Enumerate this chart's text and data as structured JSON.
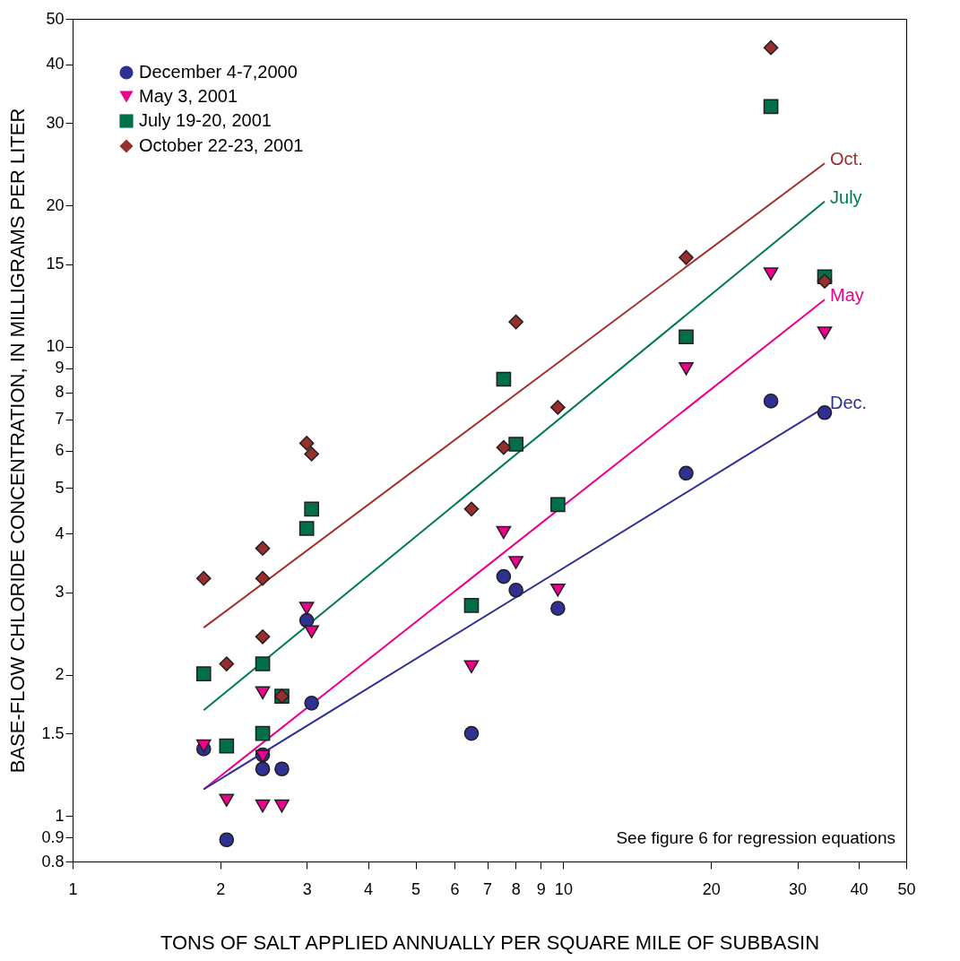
{
  "chart_data": {
    "type": "scatter",
    "xlabel": "TONS OF SALT APPLIED ANNUALLY PER SQUARE MILE OF SUBBASIN",
    "ylabel": "BASE-FLOW CHLORIDE CONCENTRATION, IN MILLIGRAMS PER LITER",
    "log": "xy",
    "grid": false,
    "legend": "top left",
    "xlim": [
      1,
      50
    ],
    "xticks": [
      1,
      2,
      3,
      4,
      5,
      6,
      7,
      8,
      9,
      10,
      20,
      30,
      40,
      50
    ],
    "ylim": [
      0.8,
      50
    ],
    "yticks": [
      0.8,
      0.9,
      1,
      1.5,
      2,
      3,
      4,
      5,
      6,
      7,
      8,
      9,
      10,
      15,
      20,
      30,
      40,
      50
    ],
    "annotations": [
      "See figure 6 for regression equations"
    ],
    "series": [
      {
        "name": "December 4-7,2000",
        "type": "scatter",
        "marker": "circle",
        "color": "#2e3192",
        "x": [
          1.85,
          2.06,
          2.44,
          2.44,
          2.67,
          3.0,
          3.07,
          6.5,
          7.56,
          8.01,
          9.75,
          17.8,
          26.5,
          34.1
        ],
        "values": [
          1.39,
          0.89,
          1.35,
          1.26,
          1.26,
          2.61,
          1.74,
          1.5,
          3.24,
          3.03,
          2.77,
          5.38,
          7.66,
          7.24
        ]
      },
      {
        "name": "May 3, 2001",
        "type": "scatter",
        "marker": "triangle",
        "color": "#ec008c",
        "x": [
          1.85,
          2.06,
          2.44,
          2.44,
          2.44,
          2.67,
          3.0,
          3.07,
          6.5,
          7.56,
          8.01,
          9.75,
          17.8,
          26.5,
          34.1
        ],
        "values": [
          1.41,
          1.08,
          1.83,
          1.34,
          1.05,
          1.05,
          2.77,
          2.47,
          2.08,
          4.02,
          3.47,
          3.03,
          8.98,
          14.3,
          10.7
        ]
      },
      {
        "name": "July 19-20, 2001",
        "type": "scatter",
        "marker": "square",
        "color": "#00704a",
        "x": [
          1.85,
          2.06,
          2.44,
          2.44,
          2.67,
          3.0,
          3.07,
          6.5,
          7.56,
          8.01,
          9.75,
          17.8,
          26.5,
          34.1
        ],
        "values": [
          2.01,
          1.41,
          2.11,
          1.5,
          1.8,
          4.1,
          4.51,
          2.81,
          8.53,
          6.2,
          4.61,
          10.5,
          32.5,
          14.1
        ]
      },
      {
        "name": "October 22-23, 2001",
        "type": "scatter",
        "marker": "diamond",
        "color": "#96302f",
        "x": [
          1.85,
          2.06,
          2.44,
          2.44,
          2.44,
          2.67,
          3.0,
          3.07,
          6.5,
          7.56,
          8.01,
          9.75,
          17.8,
          26.5,
          34.1
        ],
        "values": [
          3.21,
          2.11,
          3.72,
          3.21,
          2.41,
          1.8,
          6.23,
          5.91,
          4.51,
          6.1,
          11.3,
          7.43,
          15.5,
          43.4,
          13.8
        ]
      },
      {
        "name": "Oct.",
        "type": "line",
        "color": "#a0302e",
        "x": [
          1.85,
          34.1
        ],
        "values": [
          2.52,
          24.6
        ]
      },
      {
        "name": "July",
        "type": "line",
        "color": "#007a4d",
        "x": [
          1.85,
          34.1
        ],
        "values": [
          1.68,
          20.4
        ]
      },
      {
        "name": "May",
        "type": "line",
        "color": "#ec008c",
        "x": [
          1.85,
          34.1
        ],
        "values": [
          1.14,
          12.6
        ]
      },
      {
        "name": "Dec.",
        "type": "line",
        "color": "#2e3192",
        "x": [
          1.85,
          34.1
        ],
        "values": [
          1.14,
          7.43
        ]
      }
    ]
  }
}
